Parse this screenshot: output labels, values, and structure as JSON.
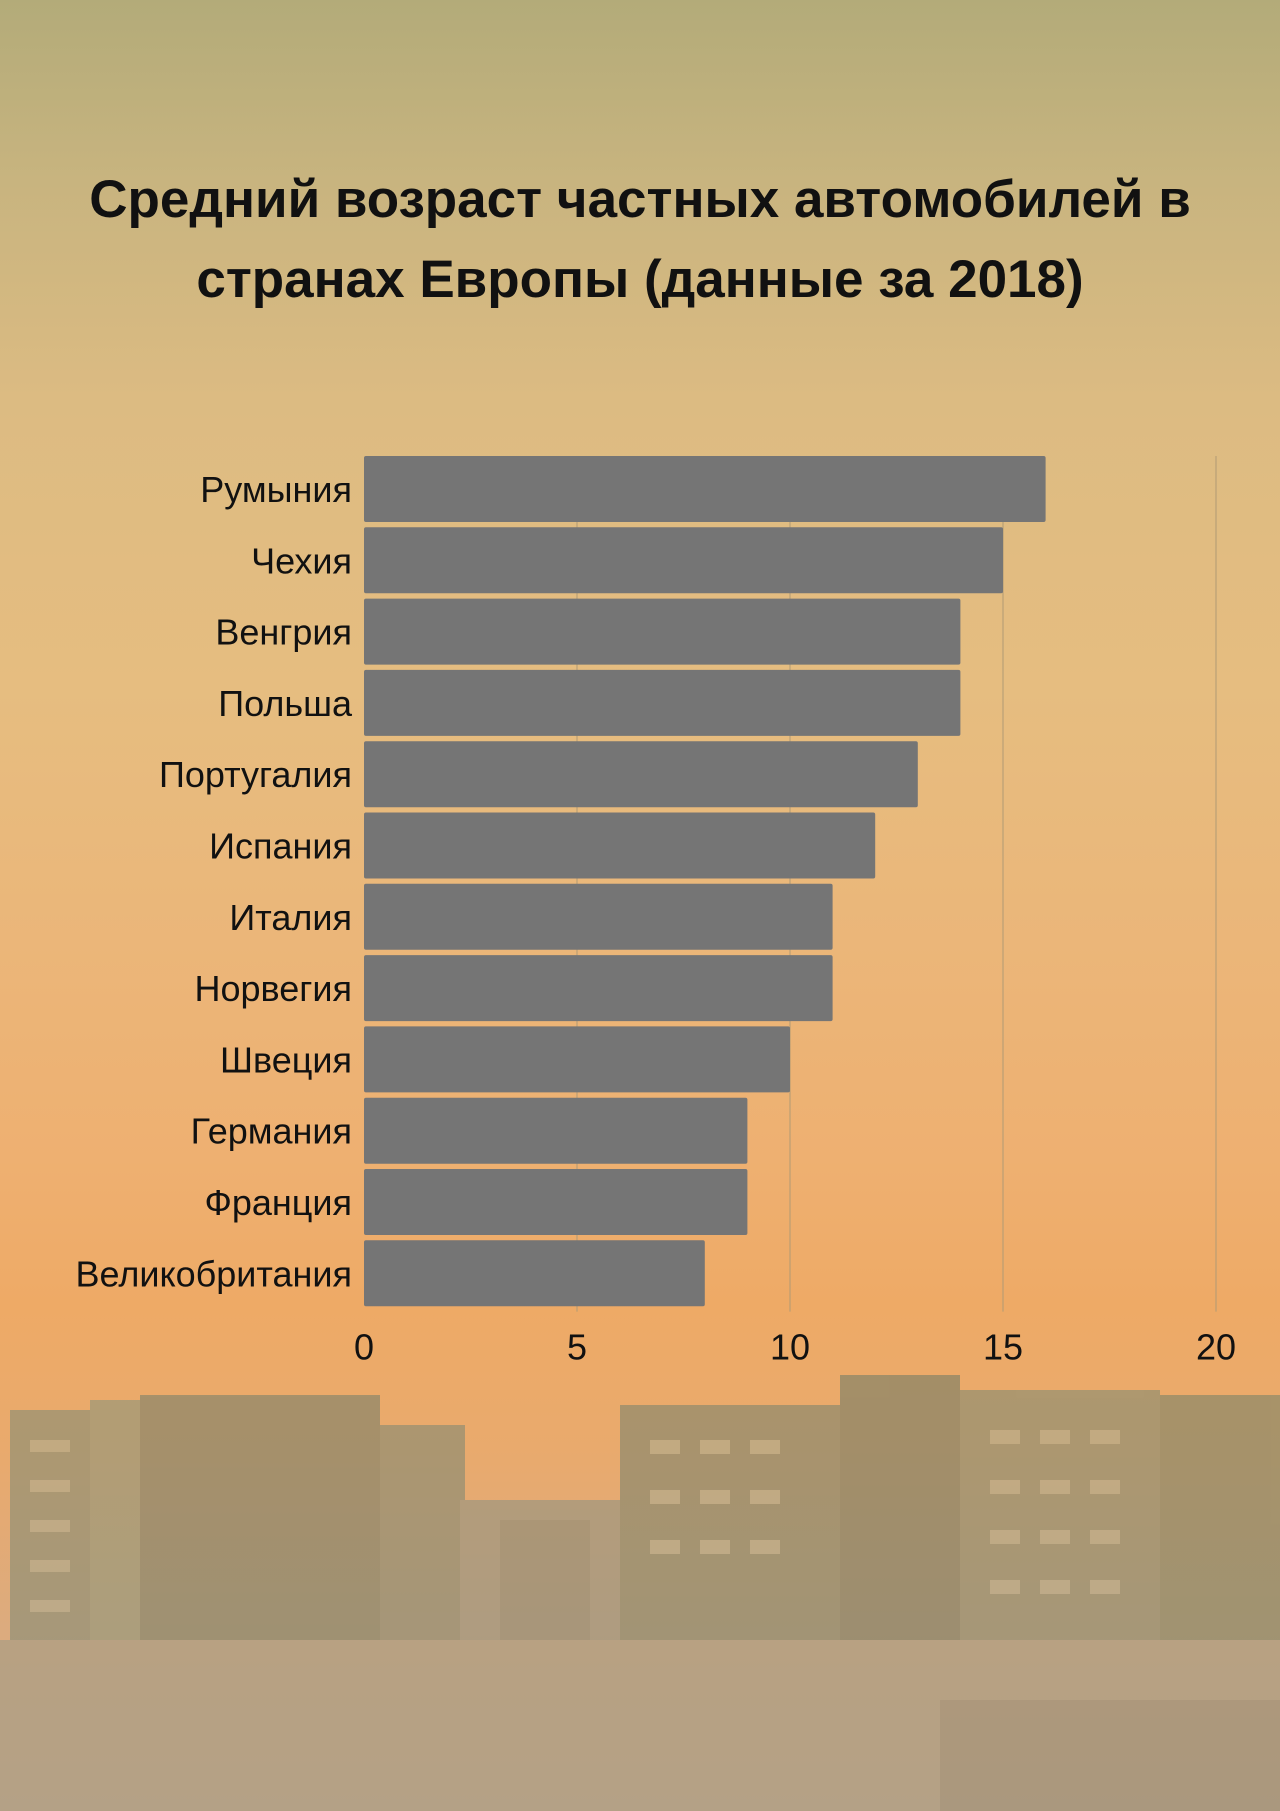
{
  "colors": {
    "bar": "#757575",
    "text": "#111111",
    "grid": "#b09a74"
  },
  "chart_data": {
    "type": "bar",
    "orientation": "horizontal",
    "title": "Средний возраст частных автомобилей в странах Европы (данные за 2018)",
    "title_lines": [
      "Средний возраст частных автомобилей в",
      "странах Европы (данные за 2018)"
    ],
    "categories": [
      "Румыния",
      "Чехия",
      "Венгрия",
      "Польша",
      "Португалия",
      "Испания",
      "Италия",
      "Норвегия",
      "Швеция",
      "Германия",
      "Франция",
      "Великобритания"
    ],
    "values": [
      16,
      15,
      14,
      14,
      13,
      12,
      11,
      11,
      10,
      9,
      9,
      8
    ],
    "xlim": [
      0,
      20
    ],
    "xticks": [
      0,
      5,
      10,
      15,
      20
    ],
    "tick_labels": [
      "0",
      "5",
      "10",
      "15",
      "20"
    ],
    "xlabel": "",
    "ylabel": "",
    "grid": true
  }
}
